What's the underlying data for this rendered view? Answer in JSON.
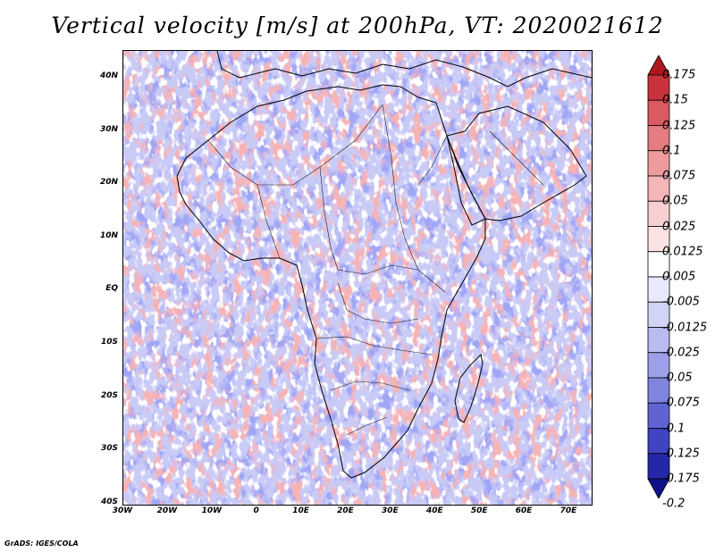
{
  "title": "Vertical velocity [m/s] at 200hPa, VT: 2020021612",
  "footer": "GrADS: IGES/COLA",
  "map": {
    "lon_range": [
      -30,
      75
    ],
    "lat_range": [
      -40,
      45
    ],
    "lat_labels": [
      "40N",
      "30N",
      "20N",
      "10N",
      "EQ",
      "10S",
      "20S",
      "30S",
      "40S"
    ],
    "lon_labels": [
      "30W",
      "20W",
      "10W",
      "0",
      "10E",
      "20E",
      "30E",
      "40E",
      "50E",
      "60E",
      "70E"
    ]
  },
  "colorbar": {
    "labels": [
      "0.175",
      "0.15",
      "0.125",
      "0.1",
      "0.075",
      "0.05",
      "0.025",
      "0.0125",
      "0.005",
      "-0.005",
      "-0.0125",
      "-0.025",
      "-0.05",
      "-0.075",
      "-0.1",
      "-0.125",
      "-0.175",
      "-0.2"
    ],
    "colors": [
      "#b01820",
      "#c8323a",
      "#d95a60",
      "#e57c80",
      "#ee9b9e",
      "#f4b6b8",
      "#f8cfd0",
      "#fbe3e4",
      "#ffffff",
      "#e8e9fb",
      "#d2d4f6",
      "#b9bcf0",
      "#9da0e8",
      "#8084de",
      "#6064d2",
      "#4044c2",
      "#2428a8",
      "#10128a"
    ]
  }
}
